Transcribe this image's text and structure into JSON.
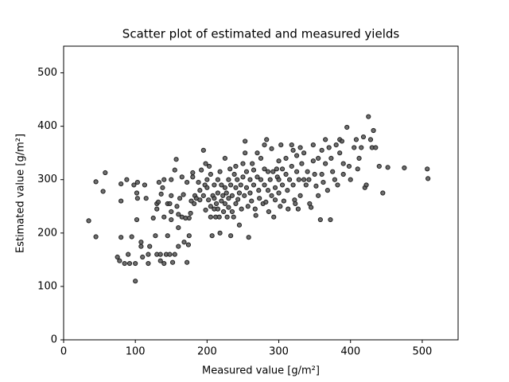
{
  "chart_data": {
    "type": "scatter",
    "title": "Scatter plot of estimated and measured yields",
    "xlabel": "Measured value [g/m²]",
    "ylabel": "Estimated value [g/m²]",
    "color": "#555555",
    "edgecolor": "#222222",
    "xlim": [
      0,
      550
    ],
    "ylim": [
      0,
      550
    ],
    "xticks": [
      0,
      100,
      200,
      300,
      400,
      500
    ],
    "yticks": [
      0,
      100,
      200,
      300,
      400,
      500
    ],
    "x": [
      35,
      45,
      45,
      55,
      58,
      75,
      78,
      80,
      80,
      80,
      88,
      85,
      90,
      92,
      95,
      98,
      100,
      100,
      102,
      103,
      102,
      103,
      108,
      108,
      110,
      113,
      115,
      118,
      118,
      120,
      125,
      128,
      130,
      130,
      130,
      132,
      133,
      135,
      135,
      136,
      138,
      140,
      140,
      140,
      143,
      145,
      145,
      148,
      148,
      150,
      150,
      150,
      150,
      152,
      155,
      155,
      157,
      158,
      160,
      160,
      160,
      162,
      165,
      165,
      167,
      168,
      170,
      172,
      172,
      174,
      175,
      175,
      177,
      178,
      180,
      180,
      182,
      183,
      185,
      188,
      190,
      190,
      192,
      195,
      195,
      197,
      198,
      198,
      200,
      200,
      202,
      203,
      205,
      205,
      205,
      207,
      208,
      210,
      210,
      210,
      212,
      213,
      215,
      215,
      215,
      217,
      218,
      218,
      220,
      220,
      222,
      223,
      225,
      225,
      225,
      227,
      228,
      230,
      230,
      230,
      232,
      233,
      233,
      235,
      235,
      237,
      238,
      240,
      240,
      240,
      242,
      243,
      245,
      245,
      247,
      248,
      250,
      250,
      252,
      253,
      253,
      255,
      255,
      257,
      258,
      260,
      260,
      262,
      263,
      265,
      265,
      267,
      268,
      270,
      270,
      272,
      273,
      275,
      275,
      278,
      280,
      280,
      280,
      282,
      283,
      285,
      285,
      286,
      288,
      290,
      290,
      292,
      293,
      295,
      295,
      297,
      298,
      300,
      300,
      300,
      302,
      303,
      305,
      305,
      307,
      310,
      310,
      312,
      313,
      315,
      318,
      318,
      320,
      320,
      322,
      323,
      325,
      325,
      327,
      328,
      330,
      330,
      332,
      335,
      335,
      338,
      340,
      342,
      343,
      345,
      348,
      348,
      350,
      352,
      355,
      355,
      358,
      360,
      360,
      362,
      365,
      365,
      368,
      370,
      372,
      373,
      375,
      378,
      380,
      382,
      385,
      385,
      388,
      390,
      390,
      395,
      398,
      400,
      405,
      408,
      410,
      412,
      415,
      418,
      420,
      422,
      425,
      428,
      430,
      432,
      435,
      440,
      445,
      452,
      475,
      507,
      508
    ],
    "values": [
      223,
      193,
      296,
      278,
      313,
      155,
      148,
      192,
      260,
      292,
      300,
      143,
      160,
      143,
      193,
      290,
      110,
      143,
      225,
      295,
      275,
      265,
      183,
      175,
      155,
      290,
      265,
      143,
      160,
      175,
      228,
      195,
      255,
      245,
      160,
      258,
      295,
      148,
      160,
      273,
      285,
      230,
      300,
      143,
      160,
      255,
      195,
      255,
      160,
      300,
      270,
      240,
      225,
      145,
      318,
      160,
      338,
      250,
      235,
      210,
      175,
      265,
      305,
      230,
      272,
      183,
      228,
      145,
      295,
      178,
      228,
      195,
      237,
      260,
      313,
      305,
      255,
      270,
      265,
      295,
      262,
      280,
      318,
      355,
      270,
      290,
      330,
      243,
      300,
      285,
      262,
      325,
      310,
      230,
      250,
      195,
      270,
      290,
      265,
      245,
      230,
      255,
      300,
      275,
      245,
      230,
      315,
      200,
      260,
      290,
      270,
      240,
      340,
      285,
      255,
      275,
      230,
      300,
      265,
      248,
      320,
      290,
      195,
      270,
      240,
      230,
      310,
      325,
      285,
      255,
      300,
      263,
      275,
      215,
      290,
      245,
      330,
      305,
      270,
      372,
      350,
      315,
      285,
      250,
      192,
      300,
      275,
      260,
      330,
      318,
      290,
      245,
      233,
      350,
      305,
      280,
      265,
      340,
      300,
      255,
      365,
      320,
      290,
      258,
      375,
      315,
      280,
      240,
      300,
      358,
      270,
      315,
      230,
      285,
      262,
      320,
      305,
      335,
      300,
      275,
      250,
      365,
      320,
      290,
      260,
      340,
      310,
      280,
      245,
      300,
      365,
      325,
      355,
      290,
      262,
      255,
      345,
      315,
      245,
      300,
      360,
      270,
      330,
      300,
      350,
      290,
      315,
      300,
      255,
      248,
      365,
      335,
      310,
      288,
      270,
      340,
      225,
      355,
      310,
      295,
      375,
      330,
      280,
      360,
      225,
      340,
      315,
      300,
      365,
      290,
      350,
      375,
      372,
      330,
      310,
      398,
      325,
      300,
      360,
      375,
      320,
      340,
      360,
      380,
      285,
      290,
      418,
      375,
      360,
      392,
      360,
      325,
      275,
      323,
      322,
      320,
      302
    ]
  }
}
